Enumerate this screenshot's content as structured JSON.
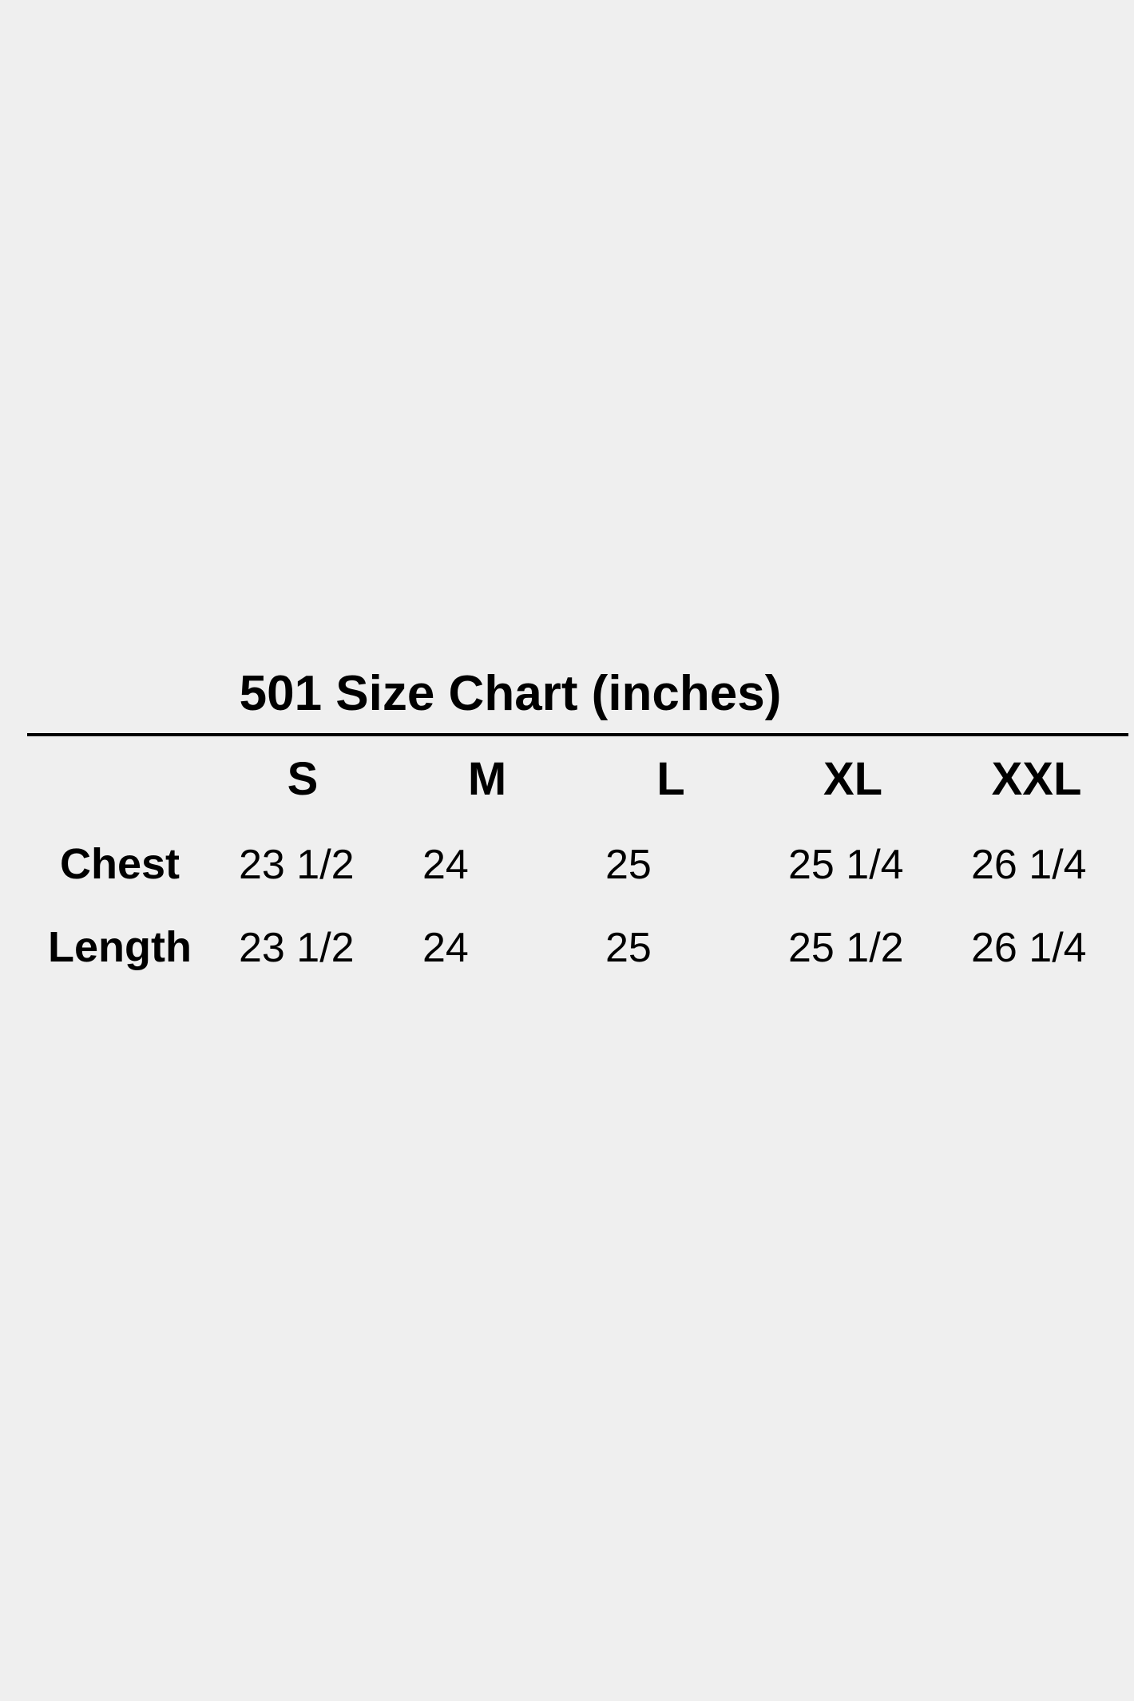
{
  "header": {
    "title": "501 Size Chart (inches)"
  },
  "table": {
    "columns": [
      "S",
      "M",
      "L",
      "XL",
      "XXL"
    ],
    "rows": [
      {
        "label": "Chest",
        "cells": [
          "23 1/2",
          "24",
          "25",
          "25 1/4",
          "26 1/4"
        ]
      },
      {
        "label": "Length",
        "cells": [
          "23 1/2",
          "24",
          "25",
          "25 1/2",
          "26 1/4"
        ]
      }
    ]
  }
}
